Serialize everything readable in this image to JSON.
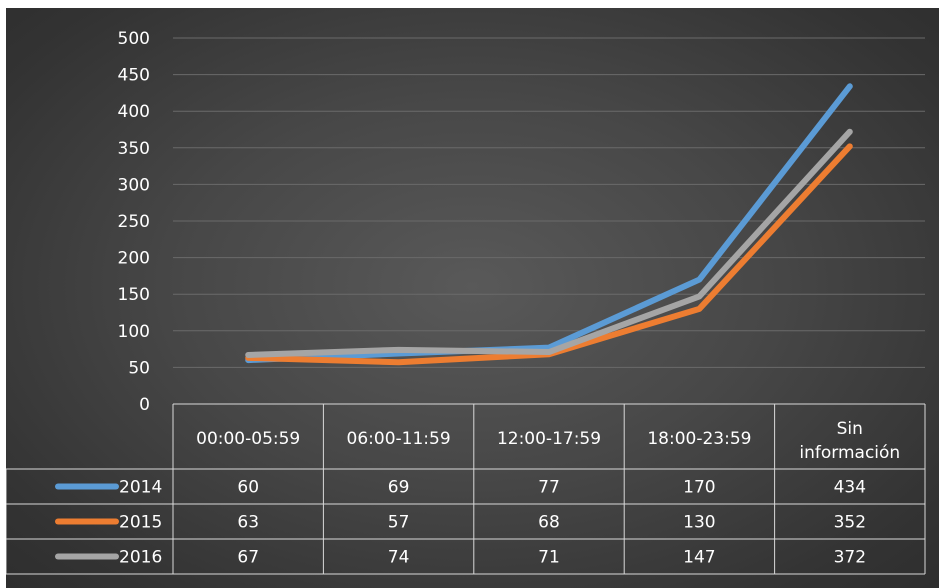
{
  "chart_data": {
    "type": "line",
    "categories": [
      "00:00-05:59",
      "06:00-11:59",
      "12:00-17:59",
      "18:00-23:59",
      "Sin información"
    ],
    "series": [
      {
        "name": "2014",
        "color": "#5b9bd5",
        "values": [
          60,
          69,
          77,
          170,
          434
        ]
      },
      {
        "name": "2015",
        "color": "#ed7d31",
        "values": [
          63,
          57,
          68,
          130,
          352
        ]
      },
      {
        "name": "2016",
        "color": "#a5a5a5",
        "values": [
          67,
          74,
          71,
          147,
          372
        ]
      }
    ],
    "ylim": [
      0,
      500
    ],
    "yticks": [
      0,
      50,
      100,
      150,
      200,
      250,
      300,
      350,
      400,
      450,
      500
    ],
    "grid": true,
    "legend": "data-table",
    "background": "#404040"
  }
}
